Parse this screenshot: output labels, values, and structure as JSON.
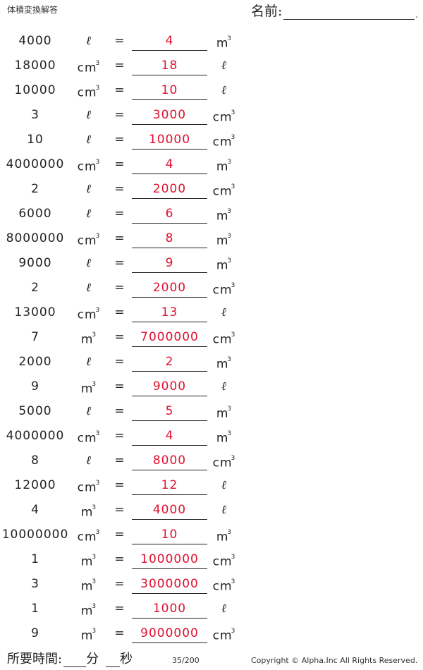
{
  "header": {
    "title": "体積変換解答",
    "name_label": "名前:",
    "name_end": "."
  },
  "rows": [
    {
      "given": "4000",
      "from": "ℓ",
      "from_type": "l",
      "answer": "4",
      "to": "m",
      "to_type": "cube"
    },
    {
      "given": "18000",
      "from": "cm",
      "from_type": "cube",
      "answer": "18",
      "to": "ℓ",
      "to_type": "l"
    },
    {
      "given": "10000",
      "from": "cm",
      "from_type": "cube",
      "answer": "10",
      "to": "ℓ",
      "to_type": "l"
    },
    {
      "given": "3",
      "from": "ℓ",
      "from_type": "l",
      "answer": "3000",
      "to": "cm",
      "to_type": "cube"
    },
    {
      "given": "10",
      "from": "ℓ",
      "from_type": "l",
      "answer": "10000",
      "to": "cm",
      "to_type": "cube"
    },
    {
      "given": "4000000",
      "from": "cm",
      "from_type": "cube",
      "answer": "4",
      "to": "m",
      "to_type": "cube"
    },
    {
      "given": "2",
      "from": "ℓ",
      "from_type": "l",
      "answer": "2000",
      "to": "cm",
      "to_type": "cube"
    },
    {
      "given": "6000",
      "from": "ℓ",
      "from_type": "l",
      "answer": "6",
      "to": "m",
      "to_type": "cube"
    },
    {
      "given": "8000000",
      "from": "cm",
      "from_type": "cube",
      "answer": "8",
      "to": "m",
      "to_type": "cube"
    },
    {
      "given": "9000",
      "from": "ℓ",
      "from_type": "l",
      "answer": "9",
      "to": "m",
      "to_type": "cube"
    },
    {
      "given": "2",
      "from": "ℓ",
      "from_type": "l",
      "answer": "2000",
      "to": "cm",
      "to_type": "cube"
    },
    {
      "given": "13000",
      "from": "cm",
      "from_type": "cube",
      "answer": "13",
      "to": "ℓ",
      "to_type": "l"
    },
    {
      "given": "7",
      "from": "m",
      "from_type": "cube",
      "answer": "7000000",
      "to": "cm",
      "to_type": "cube"
    },
    {
      "given": "2000",
      "from": "ℓ",
      "from_type": "l",
      "answer": "2",
      "to": "m",
      "to_type": "cube"
    },
    {
      "given": "9",
      "from": "m",
      "from_type": "cube",
      "answer": "9000",
      "to": "ℓ",
      "to_type": "l"
    },
    {
      "given": "5000",
      "from": "ℓ",
      "from_type": "l",
      "answer": "5",
      "to": "m",
      "to_type": "cube"
    },
    {
      "given": "4000000",
      "from": "cm",
      "from_type": "cube",
      "answer": "4",
      "to": "m",
      "to_type": "cube"
    },
    {
      "given": "8",
      "from": "ℓ",
      "from_type": "l",
      "answer": "8000",
      "to": "cm",
      "to_type": "cube"
    },
    {
      "given": "12000",
      "from": "cm",
      "from_type": "cube",
      "answer": "12",
      "to": "ℓ",
      "to_type": "l"
    },
    {
      "given": "4",
      "from": "m",
      "from_type": "cube",
      "answer": "4000",
      "to": "ℓ",
      "to_type": "l"
    },
    {
      "given": "10000000",
      "from": "cm",
      "from_type": "cube",
      "answer": "10",
      "to": "m",
      "to_type": "cube"
    },
    {
      "given": "1",
      "from": "m",
      "from_type": "cube",
      "answer": "1000000",
      "to": "cm",
      "to_type": "cube"
    },
    {
      "given": "3",
      "from": "m",
      "from_type": "cube",
      "answer": "3000000",
      "to": "cm",
      "to_type": "cube"
    },
    {
      "given": "1",
      "from": "m",
      "from_type": "cube",
      "answer": "1000",
      "to": "ℓ",
      "to_type": "l"
    },
    {
      "given": "9",
      "from": "m",
      "from_type": "cube",
      "answer": "9000000",
      "to": "cm",
      "to_type": "cube"
    }
  ],
  "equals": "=",
  "superscript": "3",
  "footer": {
    "time_label": "所要時間:",
    "minutes": "分",
    "seconds": "秒",
    "page": "35/200",
    "copyright": "Copyright © Alpha.Inc All Rights Reserved."
  }
}
